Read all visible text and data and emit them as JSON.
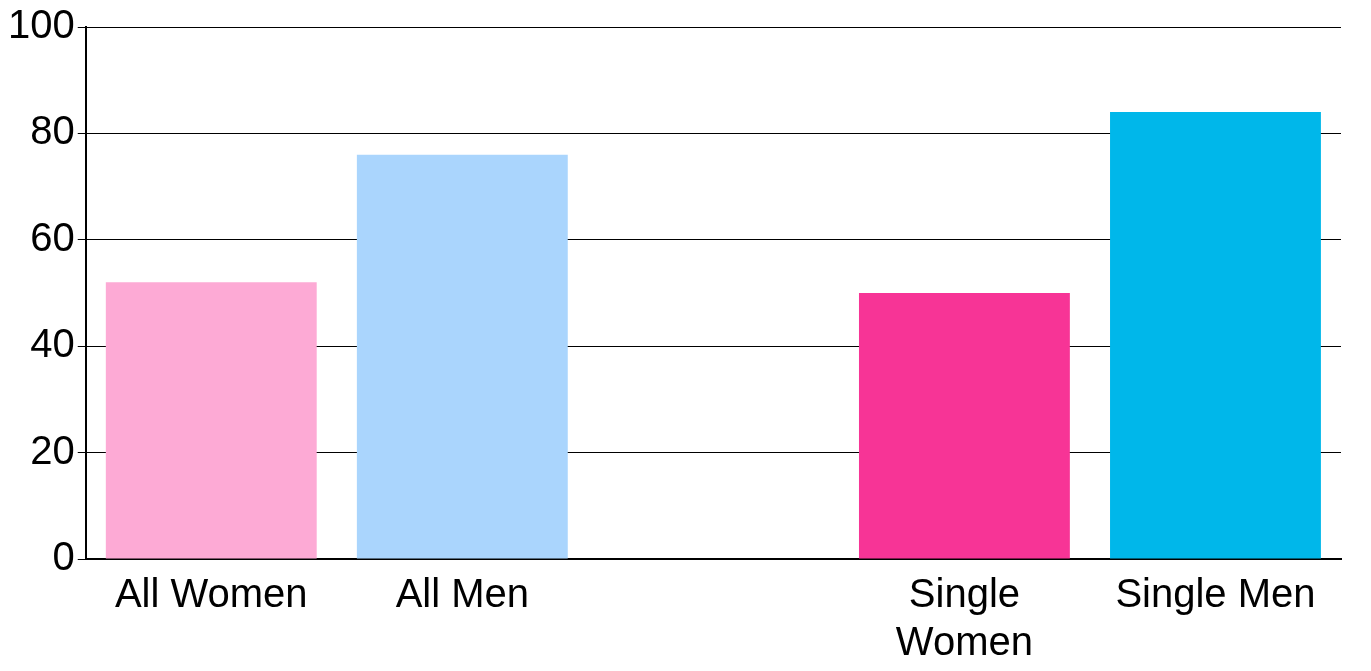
{
  "chart_data": {
    "type": "bar",
    "categories": [
      "All Women",
      "All Men",
      null,
      "Single Women",
      "Single Men"
    ],
    "values": [
      52,
      76,
      null,
      50,
      84
    ],
    "colors": [
      "#fdaad5",
      "#aad5fd",
      null,
      "#f73496",
      "#00b7ea"
    ],
    "ylim": [
      0,
      100
    ],
    "yticks": [
      0,
      20,
      40,
      60,
      80,
      100
    ],
    "grid": "y",
    "legend": false
  }
}
